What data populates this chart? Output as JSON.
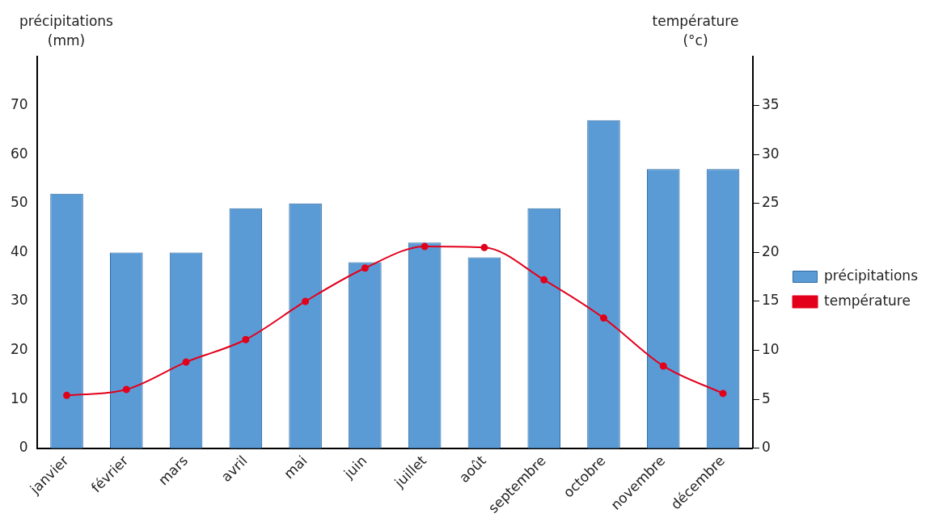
{
  "chart_data": {
    "type": "bar",
    "ylabel": "précipitations (mm)",
    "y2label": "température (°c)",
    "categories": [
      "janvier",
      "février",
      "mars",
      "avril",
      "mai",
      "juin",
      "juillet",
      "août",
      "septembre",
      "octobre",
      "novembre",
      "décembre"
    ],
    "series": [
      {
        "name": "précipitations",
        "color": "#5b9bd5",
        "values": [
          52,
          40,
          40,
          49,
          50,
          38,
          42,
          39,
          49,
          67,
          57,
          57
        ]
      },
      {
        "name": "température",
        "type": "line",
        "axis": "y2",
        "color": "#e3001b",
        "values": [
          5.4,
          6.0,
          8.8,
          11.1,
          15.0,
          18.4,
          20.6,
          20.5,
          17.2,
          13.3,
          8.4,
          5.6
        ]
      }
    ],
    "ylim": [
      0,
      80
    ],
    "yticks": [
      0,
      10,
      20,
      30,
      40,
      50,
      60,
      70
    ],
    "y2lim": [
      0,
      40
    ],
    "y2ticks": [
      0,
      5,
      10,
      15,
      20,
      25,
      30,
      35
    ],
    "grid": false,
    "legend": "right",
    "marker": "circle",
    "line_style": "solid"
  }
}
